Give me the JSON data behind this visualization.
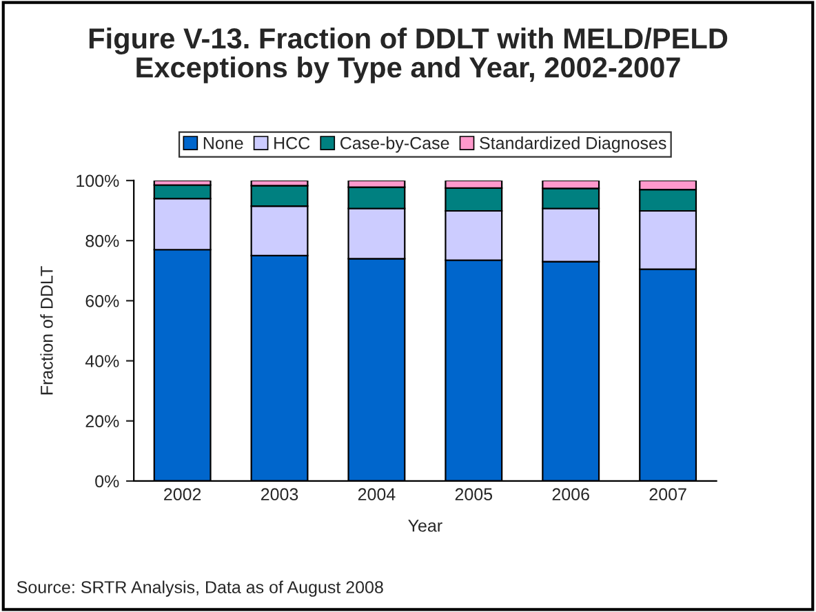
{
  "chart_data": {
    "type": "bar",
    "title": "Figure V-13. Fraction of DDLT with MELD/PELD\nExceptions by Type and Year, 2002-2007",
    "xlabel": "Year",
    "ylabel": "Fraction of DDLT",
    "categories": [
      "2002",
      "2003",
      "2004",
      "2005",
      "2006",
      "2007"
    ],
    "stacked": true,
    "series": [
      {
        "name": "None",
        "color": "#0066cc",
        "values": [
          77,
          75,
          74,
          73.5,
          73,
          70.5
        ]
      },
      {
        "name": "HCC",
        "color": "#ccccff",
        "values": [
          17,
          16.5,
          16.7,
          16.4,
          17.7,
          19.4
        ]
      },
      {
        "name": "Case-by-Case",
        "color": "#008080",
        "values": [
          4.5,
          6.8,
          7.1,
          7.6,
          6.7,
          7.1
        ]
      },
      {
        "name": "Standardized Diagnoses",
        "color": "#ff99cc",
        "values": [
          1.5,
          1.7,
          2.2,
          2.5,
          2.6,
          3.0
        ]
      }
    ],
    "ylim": [
      0,
      100
    ],
    "yticks": [
      {
        "value": 0,
        "label": "0%"
      },
      {
        "value": 20,
        "label": "20%"
      },
      {
        "value": 40,
        "label": "40%"
      },
      {
        "value": 60,
        "label": "60%"
      },
      {
        "value": 80,
        "label": "80%"
      },
      {
        "value": 100,
        "label": "100%"
      }
    ],
    "grid": false,
    "legend": "top",
    "annotations": [
      "Source: SRTR Analysis, Data as of August 2008"
    ]
  }
}
